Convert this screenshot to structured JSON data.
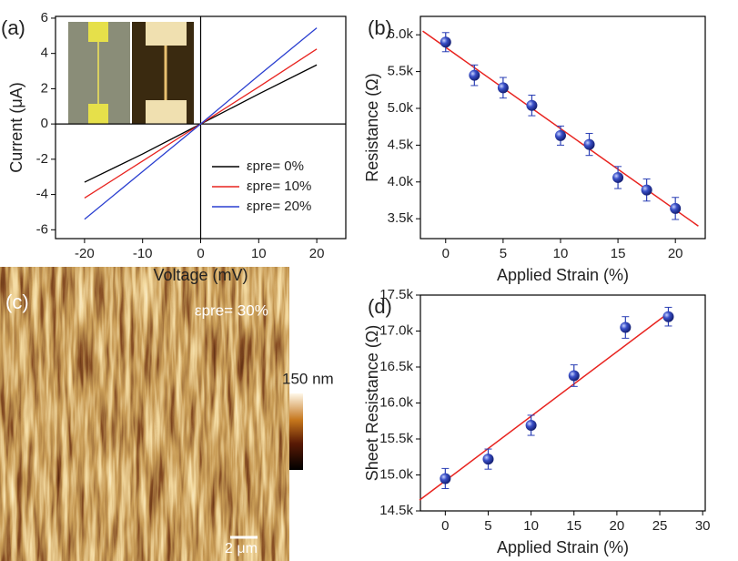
{
  "chart_data": [
    {
      "type": "line",
      "panel": "(a)",
      "x_label": "Voltage (mV)",
      "y_label": "Current (μA)",
      "x": [
        -20,
        -10,
        0,
        10,
        20
      ],
      "series": [
        {
          "name": "εpre= 0%",
          "color": "#000000",
          "values": [
            -3.3,
            -1.7,
            0,
            1.7,
            3.35
          ]
        },
        {
          "name": "εpre= 10%",
          "color": "#e8231f",
          "values": [
            -4.2,
            -2.1,
            0,
            2.1,
            4.25
          ]
        },
        {
          "name": "εpre= 20%",
          "color": "#2a3fd0",
          "values": [
            -5.4,
            -2.7,
            0,
            2.75,
            5.45
          ]
        }
      ],
      "xlim": [
        -25,
        25
      ],
      "xticks": [
        -20,
        -10,
        0,
        10,
        20
      ],
      "ylim": [
        -6.5,
        6.1
      ],
      "yticks": [
        -6,
        -4,
        -2,
        0,
        2,
        4,
        6
      ],
      "zero_axes": true,
      "legend": "lower right"
    },
    {
      "type": "scatter",
      "panel": "(b)",
      "x_label": "Applied Strain (%)",
      "y_label": "Resistance (Ω)",
      "x": [
        0,
        2.5,
        5,
        7.5,
        10,
        12.5,
        15,
        17.5,
        20
      ],
      "values": [
        5900,
        5450,
        5280,
        5040,
        4630,
        4510,
        4060,
        3890,
        3640
      ],
      "errors": [
        130,
        140,
        140,
        140,
        130,
        150,
        150,
        150,
        150
      ],
      "color": "#2b3fb5",
      "fit": {
        "x": [
          -2,
          22
        ],
        "y": [
          6050,
          3400
        ],
        "color": "#e8231f"
      },
      "xlim": [
        -2.2,
        22.6
      ],
      "xticks": [
        0,
        5,
        10,
        15,
        20
      ],
      "ylim": [
        3230,
        6250
      ],
      "yticks": [
        {
          "value": 3500,
          "label": "3.5k"
        },
        {
          "value": 4000,
          "label": "4.0k"
        },
        {
          "value": 4500,
          "label": "4.5k"
        },
        {
          "value": 5000,
          "label": "5.0k"
        },
        {
          "value": 5500,
          "label": "5.5k"
        },
        {
          "value": 6000,
          "label": "6.0k"
        }
      ]
    },
    {
      "type": "image",
      "panel": "(c)",
      "annotation": "εpre= 30%",
      "colorbar_label": "150 nm",
      "scale_label": "2 μm"
    },
    {
      "type": "scatter",
      "panel": "(d)",
      "x_label": "Applied Strain (%)",
      "y_label": "Sheet Resistance (Ω)",
      "x": [
        0,
        5,
        10,
        15,
        21,
        26
      ],
      "values": [
        14950,
        15220,
        15690,
        16380,
        17050,
        17200
      ],
      "errors": [
        140,
        140,
        140,
        150,
        150,
        130
      ],
      "color": "#2b3fb5",
      "fit": {
        "x": [
          -3,
          26
        ],
        "y": [
          14650,
          17250
        ],
        "color": "#e8231f"
      },
      "xlim": [
        -2.9,
        30.3
      ],
      "xticks": [
        0,
        5,
        10,
        15,
        20,
        25,
        30
      ],
      "ylim": [
        14500,
        17500
      ],
      "yticks": [
        {
          "value": 14500,
          "label": "14.5k"
        },
        {
          "value": 15000,
          "label": "15.0k"
        },
        {
          "value": 15500,
          "label": "15.5k"
        },
        {
          "value": 16000,
          "label": "16.0k"
        },
        {
          "value": 16500,
          "label": "16.5k"
        },
        {
          "value": 17000,
          "label": "17.0k"
        },
        {
          "value": 17500,
          "label": "17.5k"
        }
      ]
    }
  ]
}
